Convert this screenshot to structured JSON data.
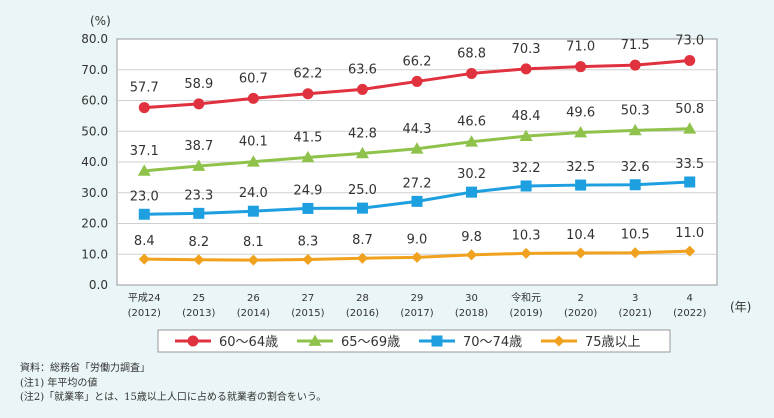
{
  "chart_data": {
    "type": "line",
    "ylabel": "(%)",
    "xlabel": "(年)",
    "ylim": [
      0,
      80
    ],
    "yticks": [
      "0.0",
      "10.0",
      "20.0",
      "30.0",
      "40.0",
      "50.0",
      "60.0",
      "70.0",
      "80.0"
    ],
    "grid": true,
    "legend_position": "bottom",
    "categories": [
      {
        "era": "平成24",
        "year": "(2012)"
      },
      {
        "era": "25",
        "year": "(2013)"
      },
      {
        "era": "26",
        "year": "(2014)"
      },
      {
        "era": "27",
        "year": "(2015)"
      },
      {
        "era": "28",
        "year": "(2016)"
      },
      {
        "era": "29",
        "year": "(2017)"
      },
      {
        "era": "30",
        "year": "(2018)"
      },
      {
        "era": "令和元",
        "year": "(2019)"
      },
      {
        "era": "2",
        "year": "(2020)"
      },
      {
        "era": "3",
        "year": "(2021)"
      },
      {
        "era": "4",
        "year": "(2022)"
      }
    ],
    "series": [
      {
        "name": "60～64歳",
        "color": "#e0313f",
        "marker": "circle",
        "values": [
          57.7,
          58.9,
          60.7,
          62.2,
          63.6,
          66.2,
          68.8,
          70.3,
          71.0,
          71.5,
          73.0
        ]
      },
      {
        "name": "65～69歳",
        "color": "#8fc24a",
        "marker": "triangle",
        "values": [
          37.1,
          38.7,
          40.1,
          41.5,
          42.8,
          44.3,
          46.6,
          48.4,
          49.6,
          50.3,
          50.8
        ]
      },
      {
        "name": "70～74歳",
        "color": "#1e9fe0",
        "marker": "square",
        "values": [
          23.0,
          23.3,
          24.0,
          24.9,
          25.0,
          27.2,
          30.2,
          32.2,
          32.5,
          32.6,
          33.5
        ]
      },
      {
        "name": "75歳以上",
        "color": "#f0a21e",
        "marker": "diamond",
        "values": [
          8.4,
          8.2,
          8.1,
          8.3,
          8.7,
          9.0,
          9.8,
          10.3,
          10.4,
          10.5,
          11.0
        ]
      }
    ]
  },
  "notes": [
    "資料：総務省「労働力調査」",
    "(注1) 年平均の値",
    "(注2)「就業率」とは、15歳以上人口に占める就業者の割合をいう。"
  ]
}
